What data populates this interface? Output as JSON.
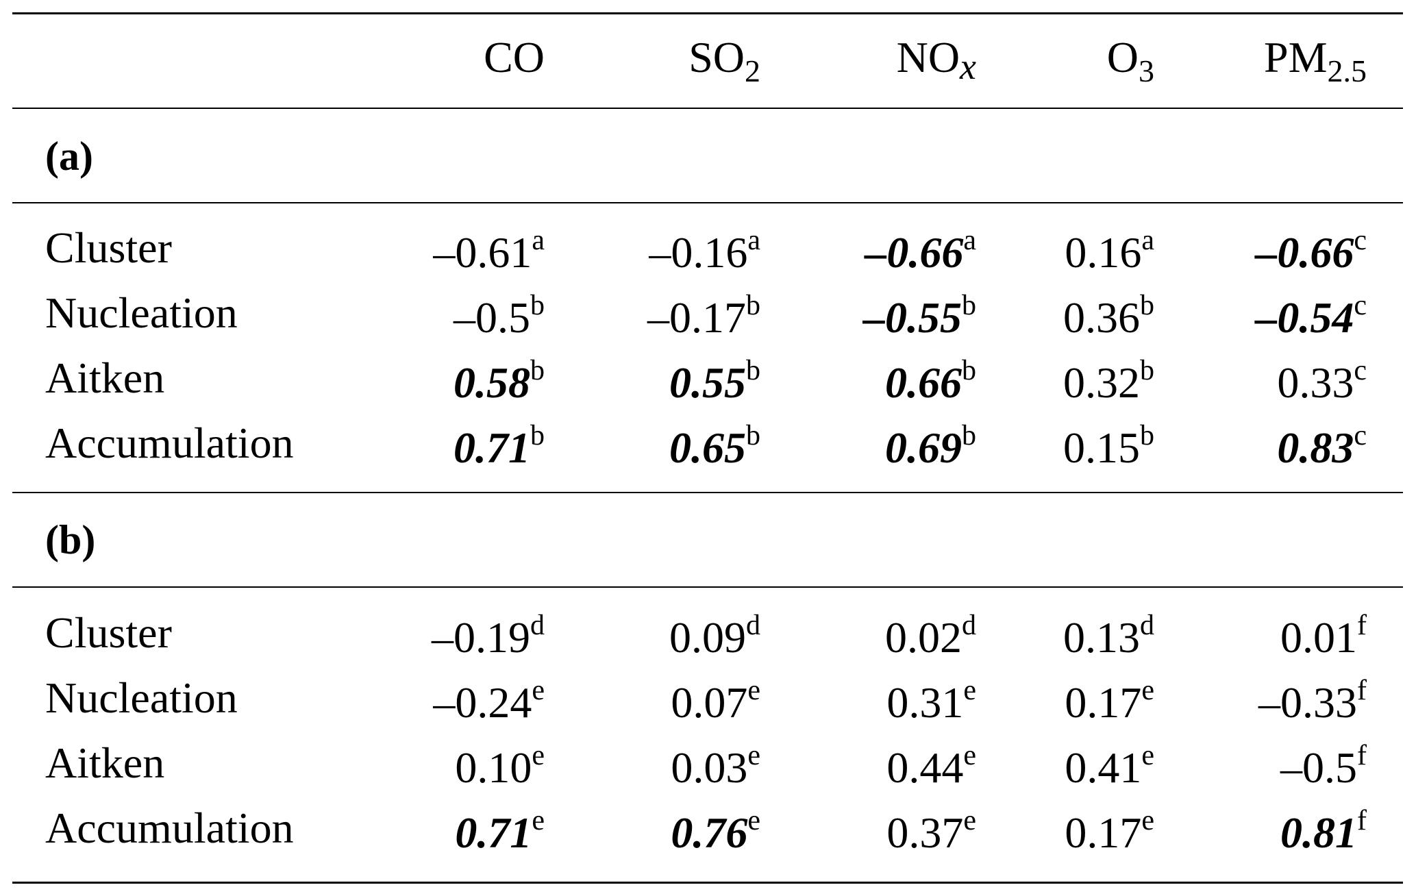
{
  "columns": [
    {
      "main": "CO",
      "sub": ""
    },
    {
      "main": "SO",
      "sub": "2"
    },
    {
      "main": "NO",
      "sub": "x"
    },
    {
      "main": "O",
      "sub": "3"
    },
    {
      "main": "PM",
      "sub": "2.5"
    }
  ],
  "sections": [
    {
      "label": "(a)",
      "rows": [
        {
          "label": "Cluster",
          "cells": [
            {
              "value": "–0.61",
              "sup": "a",
              "bold": false
            },
            {
              "value": "–0.16",
              "sup": "a",
              "bold": false
            },
            {
              "value": "–0.66",
              "sup": "a",
              "bold": true
            },
            {
              "value": "0.16",
              "sup": "a",
              "bold": false
            },
            {
              "value": "–0.66",
              "sup": "c",
              "bold": true
            }
          ]
        },
        {
          "label": "Nucleation",
          "cells": [
            {
              "value": "–0.5",
              "sup": "b",
              "bold": false
            },
            {
              "value": "–0.17",
              "sup": "b",
              "bold": false
            },
            {
              "value": "–0.55",
              "sup": "b",
              "bold": true
            },
            {
              "value": "0.36",
              "sup": "b",
              "bold": false
            },
            {
              "value": "–0.54",
              "sup": "c",
              "bold": true
            }
          ]
        },
        {
          "label": "Aitken",
          "cells": [
            {
              "value": "0.58",
              "sup": "b",
              "bold": true
            },
            {
              "value": "0.55",
              "sup": "b",
              "bold": true
            },
            {
              "value": "0.66",
              "sup": "b",
              "bold": true
            },
            {
              "value": "0.32",
              "sup": "b",
              "bold": false
            },
            {
              "value": "0.33",
              "sup": "c",
              "bold": false
            }
          ]
        },
        {
          "label": "Accumulation",
          "cells": [
            {
              "value": "0.71",
              "sup": "b",
              "bold": true
            },
            {
              "value": "0.65",
              "sup": "b",
              "bold": true
            },
            {
              "value": "0.69",
              "sup": "b",
              "bold": true
            },
            {
              "value": "0.15",
              "sup": "b",
              "bold": false
            },
            {
              "value": "0.83",
              "sup": "c",
              "bold": true
            }
          ]
        }
      ]
    },
    {
      "label": "(b)",
      "rows": [
        {
          "label": "Cluster",
          "cells": [
            {
              "value": "–0.19",
              "sup": "d",
              "bold": false
            },
            {
              "value": "0.09",
              "sup": "d",
              "bold": false
            },
            {
              "value": "0.02",
              "sup": "d",
              "bold": false
            },
            {
              "value": "0.13",
              "sup": "d",
              "bold": false
            },
            {
              "value": "0.01",
              "sup": "f",
              "bold": false
            }
          ]
        },
        {
          "label": "Nucleation",
          "cells": [
            {
              "value": "–0.24",
              "sup": "e",
              "bold": false
            },
            {
              "value": "0.07",
              "sup": "e",
              "bold": false
            },
            {
              "value": "0.31",
              "sup": "e",
              "bold": false
            },
            {
              "value": "0.17",
              "sup": "e",
              "bold": false
            },
            {
              "value": "–0.33",
              "sup": "f",
              "bold": false
            }
          ]
        },
        {
          "label": "Aitken",
          "cells": [
            {
              "value": "0.10",
              "sup": "e",
              "bold": false
            },
            {
              "value": "0.03",
              "sup": "e",
              "bold": false
            },
            {
              "value": "0.44",
              "sup": "e",
              "bold": false
            },
            {
              "value": "0.41",
              "sup": "e",
              "bold": false
            },
            {
              "value": "–0.5",
              "sup": "f",
              "bold": false
            }
          ]
        },
        {
          "label": "Accumulation",
          "cells": [
            {
              "value": "0.71",
              "sup": "e",
              "bold": true
            },
            {
              "value": "0.76",
              "sup": "e",
              "bold": true
            },
            {
              "value": "0.37",
              "sup": "e",
              "bold": false
            },
            {
              "value": "0.17",
              "sup": "e",
              "bold": false
            },
            {
              "value": "0.81",
              "sup": "f",
              "bold": true
            }
          ]
        }
      ]
    }
  ]
}
